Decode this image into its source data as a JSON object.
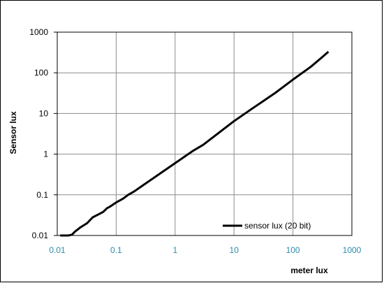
{
  "chart_data": {
    "type": "line",
    "title": "",
    "xlabel": "meter lux",
    "ylabel": "Sensor lux",
    "x_scale": "log",
    "y_scale": "log",
    "xlim": [
      0.01,
      1000
    ],
    "ylim": [
      0.01,
      1000
    ],
    "x_ticks": [
      "0.01",
      "0.1",
      "1",
      "10",
      "100",
      "1000"
    ],
    "y_ticks": [
      "0.01",
      "0.1",
      "1",
      "10",
      "100",
      "1000"
    ],
    "grid": true,
    "legend_position": "bottom-right",
    "series": [
      {
        "name": "sensor lux (20 bit)",
        "color": "#000000",
        "points": [
          [
            0.0112,
            0.01
          ],
          [
            0.0155,
            0.01
          ],
          [
            0.0178,
            0.0105
          ],
          [
            0.02,
            0.0125
          ],
          [
            0.025,
            0.016
          ],
          [
            0.032,
            0.02
          ],
          [
            0.04,
            0.028
          ],
          [
            0.05,
            0.033
          ],
          [
            0.06,
            0.038
          ],
          [
            0.07,
            0.047
          ],
          [
            0.08,
            0.052
          ],
          [
            0.1,
            0.065
          ],
          [
            0.13,
            0.08
          ],
          [
            0.16,
            0.1
          ],
          [
            0.2,
            0.12
          ],
          [
            0.3,
            0.18
          ],
          [
            0.5,
            0.3
          ],
          [
            1,
            0.6
          ],
          [
            2,
            1.2
          ],
          [
            3,
            1.7
          ],
          [
            5,
            3
          ],
          [
            10,
            6.5
          ],
          [
            20,
            13
          ],
          [
            50,
            32
          ],
          [
            100,
            68
          ],
          [
            200,
            140
          ],
          [
            300,
            230
          ],
          [
            400,
            330
          ]
        ]
      }
    ]
  }
}
